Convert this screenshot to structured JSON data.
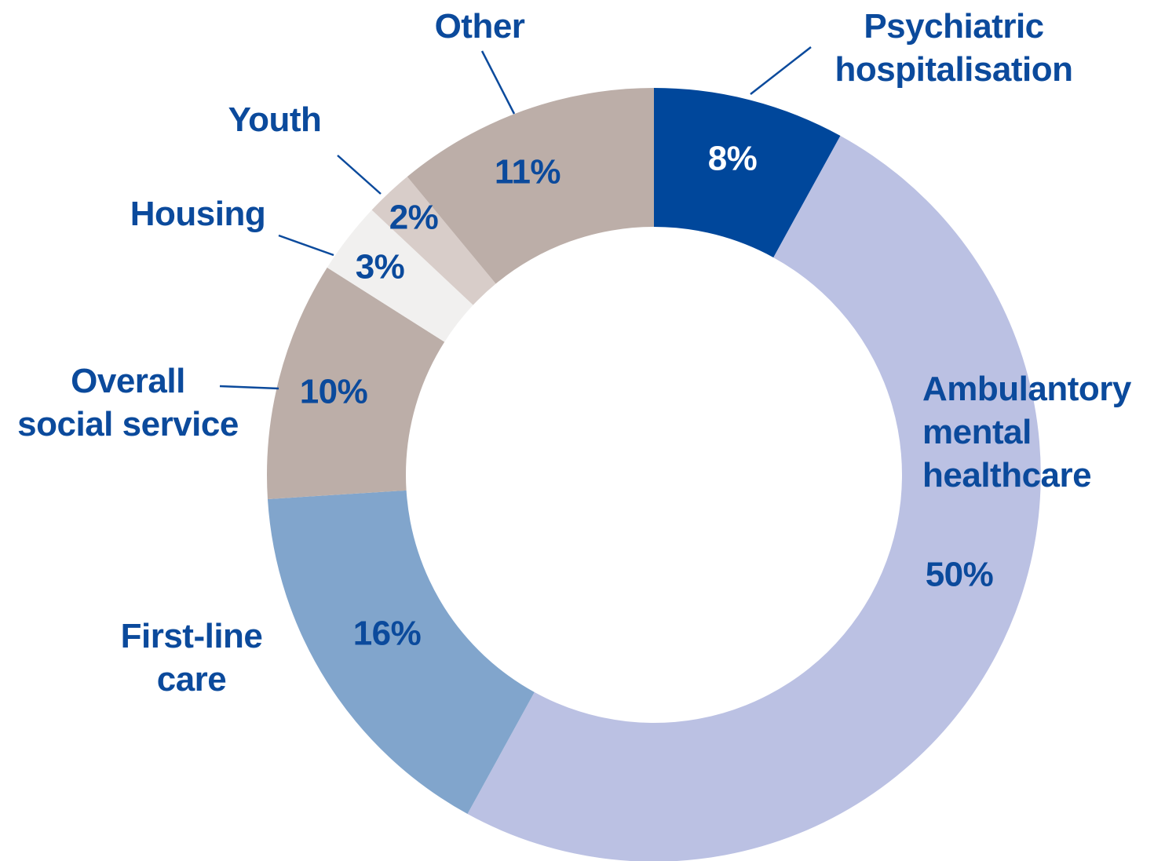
{
  "chart_data": {
    "type": "pie",
    "categories": [
      "Psychiatric\nhospitalisation",
      "Ambulantory\nmental\nhealthcare",
      "First-line\ncare",
      "Overall\nsocial service",
      "Housing",
      "Youth",
      "Other"
    ],
    "values": [
      8,
      50,
      16,
      10,
      3,
      2,
      11
    ],
    "value_labels": [
      "8%",
      "50%",
      "16%",
      "10%",
      "3%",
      "2%",
      "11%"
    ],
    "colors": [
      "#00479b",
      "#bbc1e3",
      "#81a5cc",
      "#bcaea8",
      "#f1f0ef",
      "#d8cdc9",
      "#bcaea8"
    ]
  }
}
